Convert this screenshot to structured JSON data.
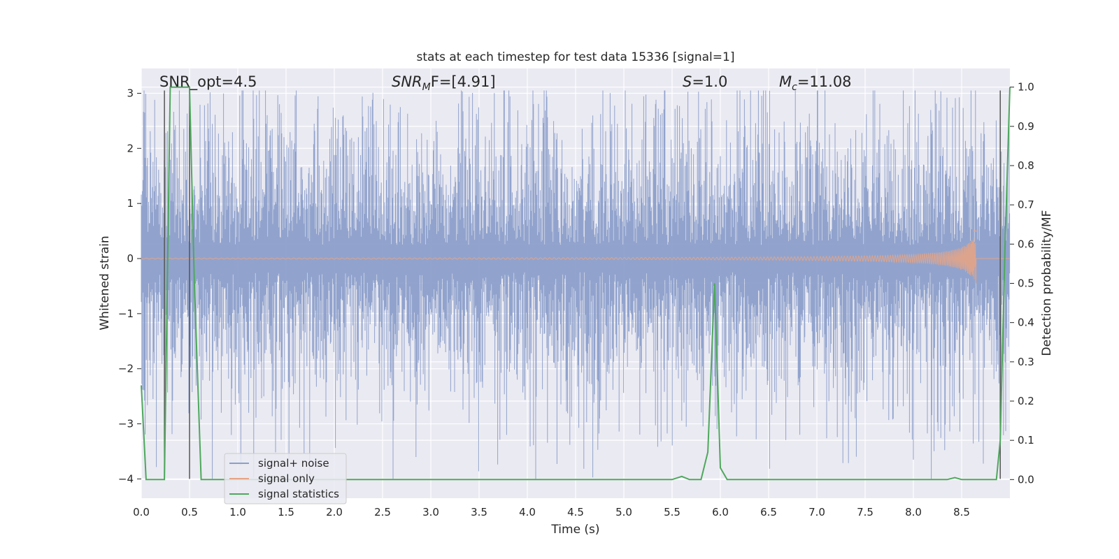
{
  "chart_data": {
    "type": "line",
    "title": "stats at each timestep for test data 15336 [signal=1]",
    "xlabel": "Time (s)",
    "ylabel": "Whitened strain",
    "y2label": "Detection probability/MF",
    "xlim": [
      0.0,
      9.0
    ],
    "ylim": [
      -4.35,
      3.45
    ],
    "y2lim": [
      -0.0475,
      1.0475
    ],
    "xticks": [
      "0.0",
      "0.5",
      "1.0",
      "1.5",
      "2.0",
      "2.5",
      "3.0",
      "3.5",
      "4.0",
      "4.5",
      "5.0",
      "5.5",
      "6.0",
      "6.5",
      "7.0",
      "7.5",
      "8.0",
      "8.5"
    ],
    "yticks": [
      "3",
      "2",
      "1",
      "0",
      "−1",
      "−2",
      "−3",
      "−4"
    ],
    "y2ticks": [
      "1.0",
      "0.9",
      "0.8",
      "0.7",
      "0.6",
      "0.5",
      "0.4",
      "0.3",
      "0.2",
      "0.1",
      "0.0"
    ],
    "grid": true,
    "legend_position": "lower-left",
    "annotations": {
      "snr_opt": "SNR_opt=4.5",
      "snr_mf_prefix": "SNR",
      "snr_mf_sub": "M",
      "snr_mf_suffix": "F=[4.91]",
      "s_prefix": "S",
      "s_suffix": "=1.0",
      "mc_prefix": "M",
      "mc_sub": "c",
      "mc_suffix": "=11.08"
    },
    "vertical_lines_x": [
      0.24,
      0.5,
      8.9
    ],
    "series": [
      {
        "name": "signal+ noise",
        "color": "#8c9fca",
        "description_axis": "left",
        "noise_envelope": {
          "typical_amplitude": 1.7,
          "peak_max": 3.05,
          "peak_min": -4.0
        }
      },
      {
        "name": "signal only",
        "color": "#e5a486",
        "description_axis": "left",
        "chirp": {
          "start_time": 0.0,
          "end_time": 8.65,
          "final_amplitude": 0.5
        }
      },
      {
        "name": "signal statistics",
        "color": "#4ea85c",
        "description_axis": "right",
        "points": [
          [
            0.0,
            0.24
          ],
          [
            0.05,
            0.0
          ],
          [
            0.1,
            0.0
          ],
          [
            0.15,
            0.0
          ],
          [
            0.2,
            0.0
          ],
          [
            0.24,
            0.0
          ],
          [
            0.3,
            1.0
          ],
          [
            0.35,
            1.0
          ],
          [
            0.4,
            1.0
          ],
          [
            0.45,
            1.0
          ],
          [
            0.5,
            1.0
          ],
          [
            0.55,
            0.5
          ],
          [
            0.62,
            0.0
          ],
          [
            0.7,
            0.0
          ],
          [
            1.0,
            0.0
          ],
          [
            2.0,
            0.0
          ],
          [
            3.0,
            0.0
          ],
          [
            4.0,
            0.0
          ],
          [
            5.0,
            0.0
          ],
          [
            5.5,
            0.0
          ],
          [
            5.6,
            0.008
          ],
          [
            5.68,
            0.0
          ],
          [
            5.8,
            0.0
          ],
          [
            5.87,
            0.07
          ],
          [
            5.94,
            0.5
          ],
          [
            6.0,
            0.03
          ],
          [
            6.07,
            0.0
          ],
          [
            7.0,
            0.0
          ],
          [
            8.0,
            0.0
          ],
          [
            8.35,
            0.0
          ],
          [
            8.43,
            0.005
          ],
          [
            8.5,
            0.0
          ],
          [
            8.6,
            0.0
          ],
          [
            8.8,
            0.0
          ],
          [
            8.86,
            0.0
          ],
          [
            8.9,
            0.1
          ],
          [
            8.95,
            0.6
          ],
          [
            9.0,
            1.0
          ]
        ]
      }
    ]
  }
}
